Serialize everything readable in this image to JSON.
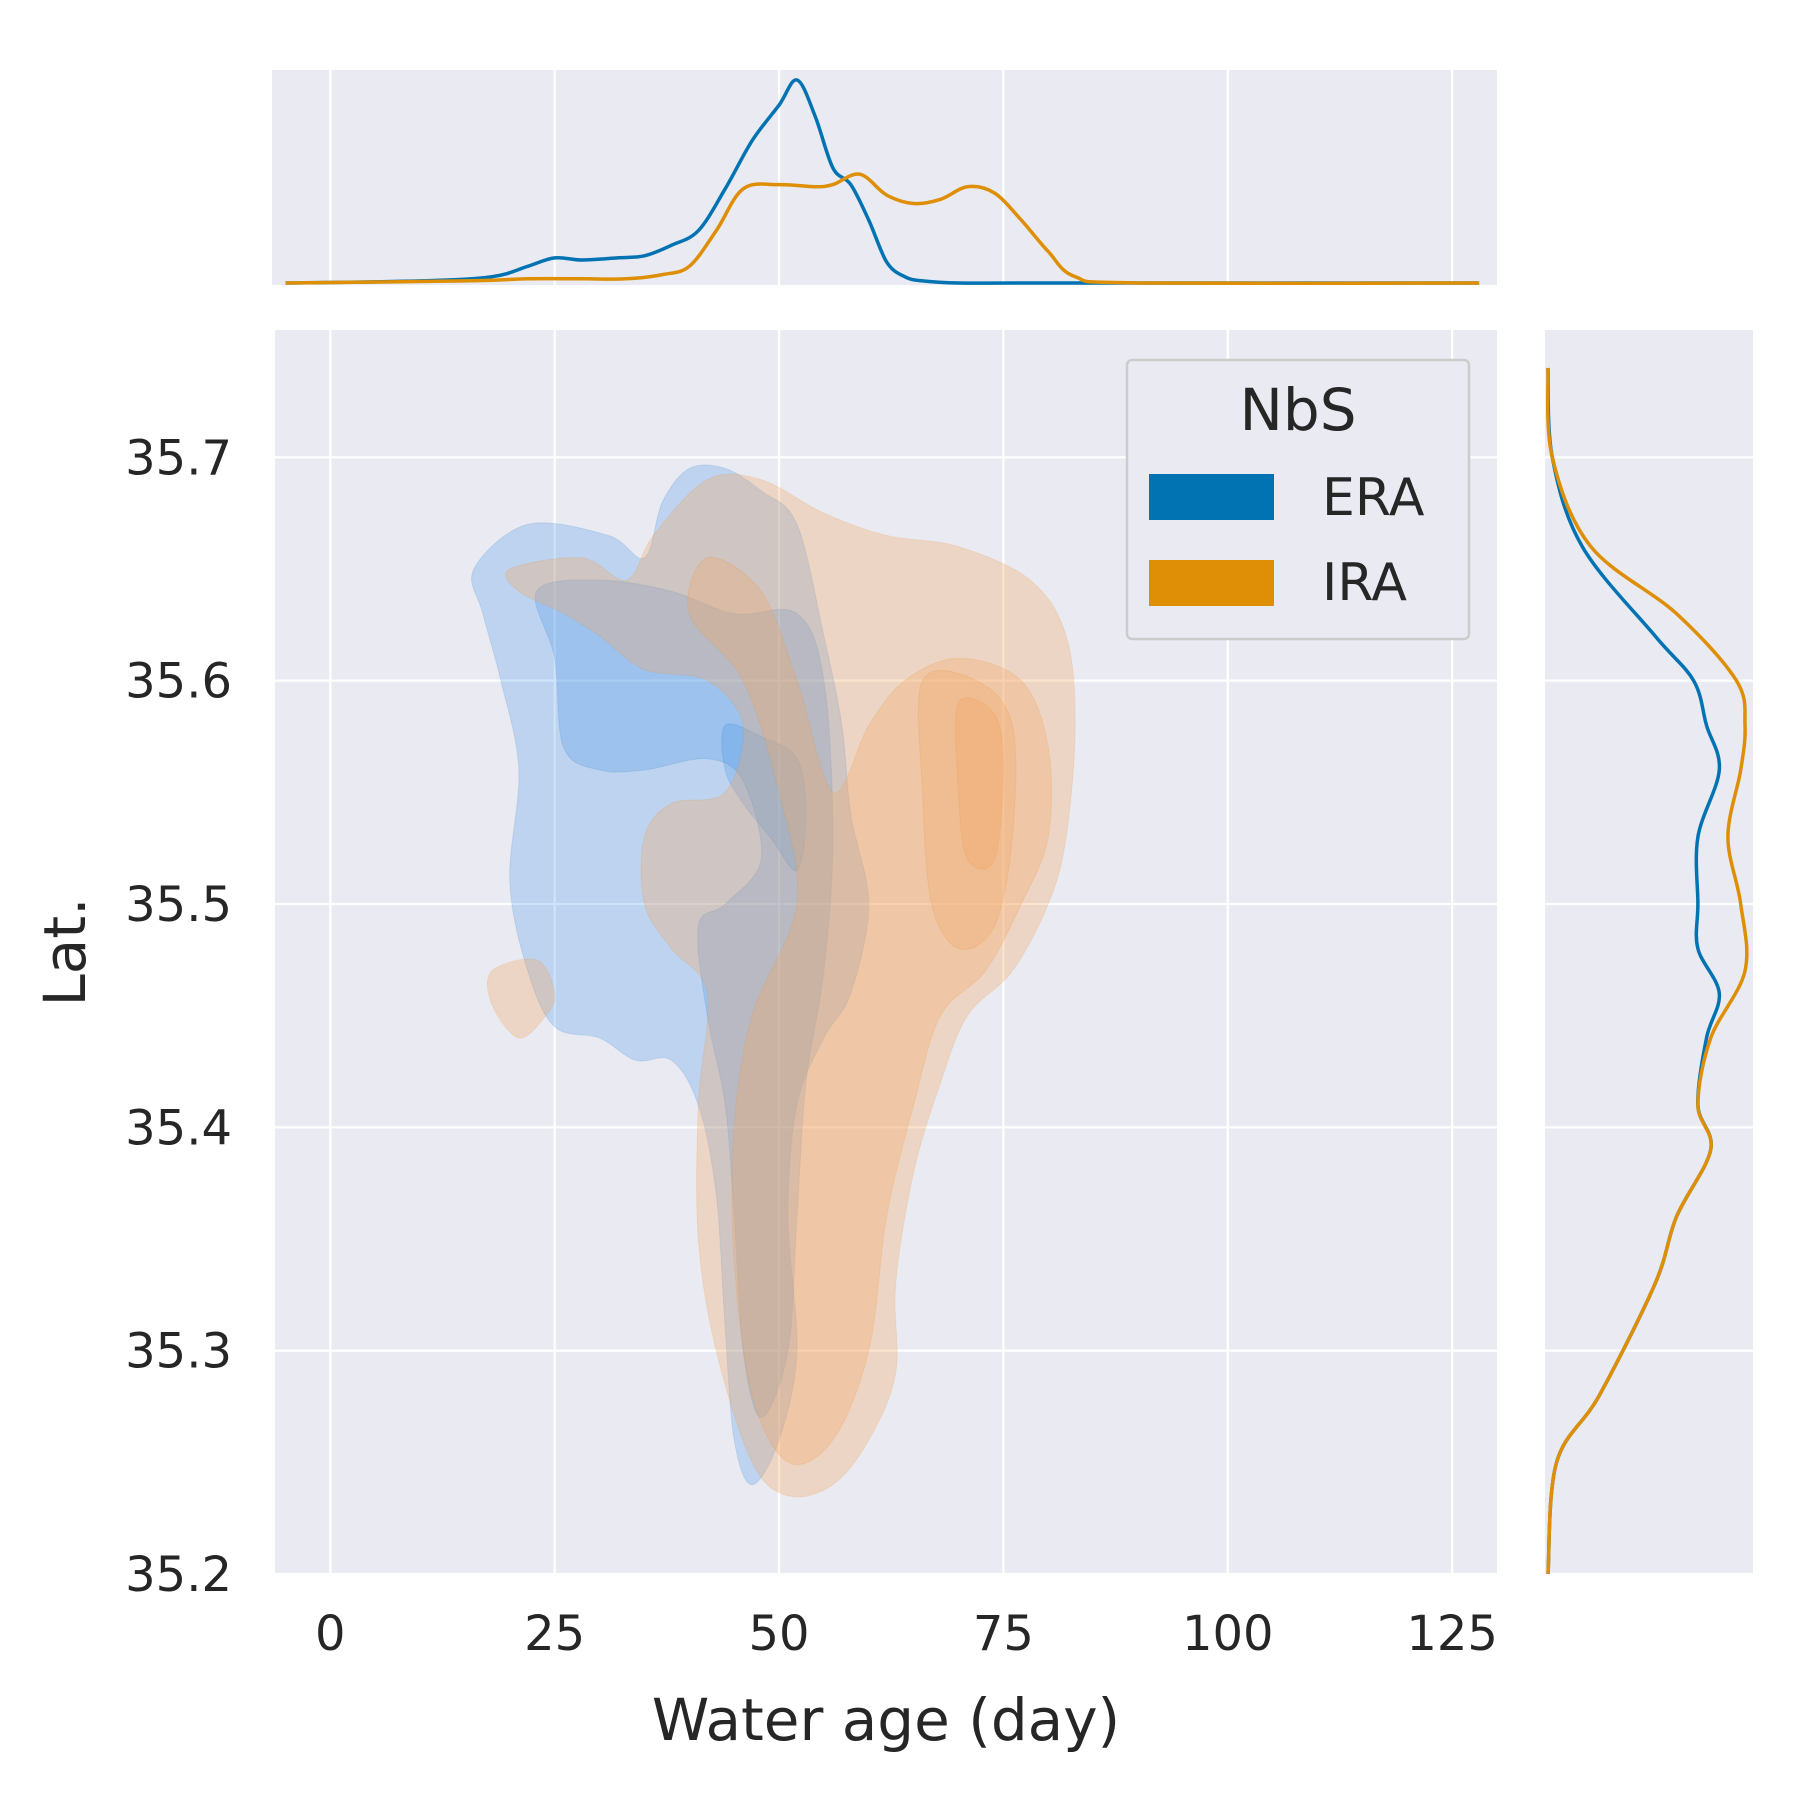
{
  "chart_data": {
    "type": "kde-joint",
    "xlabel": "Water age (day)",
    "ylabel": "Lat.",
    "xlim": [
      -6.5,
      130
    ],
    "ylim": [
      35.2,
      35.757
    ],
    "x_ticks": [
      0,
      25,
      50,
      75,
      100,
      125
    ],
    "y_ticks": [
      35.2,
      35.3,
      35.4,
      35.5,
      35.6,
      35.7
    ],
    "x_tick_labels": [
      "0",
      "25",
      "50",
      "75",
      "100",
      "125"
    ],
    "y_tick_labels": [
      "35.2",
      "35.3",
      "35.4",
      "35.5",
      "35.6",
      "35.7"
    ],
    "grid": true,
    "legend": {
      "title": "NbS",
      "placement": "upper right",
      "entries": [
        {
          "label": "ERA",
          "color": "#0173b2"
        },
        {
          "label": "IRA",
          "color": "#de8f05"
        }
      ]
    },
    "series": [
      {
        "name": "ERA",
        "color": "#0173b2",
        "fill": "#3a8fe8",
        "marginal_x": {
          "x": [
            -5,
            10,
            18,
            22,
            25,
            28,
            32,
            35,
            38,
            41,
            44,
            47,
            50,
            52,
            54,
            56,
            58,
            60,
            62,
            64,
            66,
            70,
            80,
            128
          ],
          "density": [
            0.0,
            0.001,
            0.003,
            0.008,
            0.012,
            0.011,
            0.012,
            0.013,
            0.018,
            0.025,
            0.045,
            0.068,
            0.085,
            0.097,
            0.08,
            0.055,
            0.047,
            0.03,
            0.01,
            0.003,
            0.001,
            0.0,
            0.0,
            0.0
          ]
        },
        "marginal_y": {
          "y": [
            35.2,
            35.25,
            35.28,
            35.33,
            35.36,
            35.39,
            35.41,
            35.44,
            35.46,
            35.48,
            35.5,
            35.53,
            35.56,
            35.58,
            35.6,
            35.62,
            35.66,
            35.7,
            35.74
          ],
          "density": [
            0.0,
            0.002,
            0.012,
            0.025,
            0.03,
            0.038,
            0.035,
            0.037,
            0.04,
            0.035,
            0.035,
            0.035,
            0.04,
            0.037,
            0.034,
            0.025,
            0.008,
            0.001,
            0.0
          ]
        },
        "kde_regions": [
          {
            "level": 1,
            "outline": [
              [
                16,
                35.65
              ],
              [
                22,
                35.67
              ],
              [
                31,
                35.665
              ],
              [
                35,
                35.655
              ],
              [
                37,
                35.68
              ],
              [
                40,
                35.695
              ],
              [
                44,
                35.695
              ],
              [
                48,
                35.685
              ],
              [
                52,
                35.67
              ],
              [
                55,
                35.62
              ],
              [
                57,
                35.58
              ],
              [
                58,
                35.54
              ],
              [
                60,
                35.5
              ],
              [
                58,
                35.46
              ],
              [
                55,
                35.44
              ],
              [
                52,
                35.41
              ],
              [
                51,
                35.36
              ],
              [
                52,
                35.3
              ],
              [
                50,
                35.26
              ],
              [
                47,
                35.24
              ],
              [
                45,
                35.26
              ],
              [
                44,
                35.31
              ],
              [
                43,
                35.37
              ],
              [
                41,
                35.41
              ],
              [
                38,
                35.43
              ],
              [
                34,
                35.43
              ],
              [
                30,
                35.44
              ],
              [
                25,
                35.445
              ],
              [
                22,
                35.47
              ],
              [
                20,
                35.51
              ],
              [
                21,
                35.56
              ],
              [
                19,
                35.6
              ],
              [
                17,
                35.63
              ]
            ]
          },
          {
            "level": 2,
            "outline": [
              [
                23,
                35.64
              ],
              [
                25,
                35.61
              ],
              [
                26,
                35.57
              ],
              [
                30,
                35.56
              ],
              [
                35,
                35.56
              ],
              [
                42,
                35.565
              ],
              [
                46,
                35.555
              ],
              [
                48,
                35.52
              ],
              [
                44,
                35.5
              ],
              [
                41,
                35.49
              ],
              [
                42,
                35.45
              ],
              [
                44,
                35.41
              ],
              [
                45,
                35.36
              ],
              [
                46,
                35.3
              ],
              [
                48,
                35.27
              ],
              [
                51,
                35.3
              ],
              [
                52,
                35.36
              ],
              [
                53,
                35.42
              ],
              [
                55,
                35.47
              ],
              [
                56,
                35.53
              ],
              [
                55,
                35.6
              ],
              [
                52,
                35.63
              ],
              [
                45,
                35.63
              ],
              [
                38,
                35.64
              ],
              [
                30,
                35.645
              ]
            ]
          },
          {
            "level": 3,
            "outline": [
              [
                44,
                35.58
              ],
              [
                48,
                35.575
              ],
              [
                52,
                35.565
              ],
              [
                53,
                35.54
              ],
              [
                52,
                35.515
              ],
              [
                49,
                35.53
              ],
              [
                46,
                35.545
              ],
              [
                44,
                35.56
              ]
            ]
          }
        ]
      },
      {
        "name": "IRA",
        "color": "#de8f05",
        "fill": "#f2a766",
        "marginal_x": {
          "x": [
            -5,
            15,
            22,
            28,
            33,
            37,
            40,
            43,
            46,
            50,
            54,
            56,
            59,
            62,
            65,
            68,
            71,
            74,
            77,
            80,
            83,
            90,
            128
          ],
          "density": [
            0.0,
            0.001,
            0.002,
            0.002,
            0.002,
            0.004,
            0.008,
            0.025,
            0.045,
            0.047,
            0.046,
            0.047,
            0.052,
            0.042,
            0.038,
            0.04,
            0.046,
            0.043,
            0.03,
            0.015,
            0.003,
            0.0,
            0.0
          ]
        },
        "marginal_y": {
          "y": [
            35.2,
            35.25,
            35.28,
            35.33,
            35.36,
            35.39,
            35.41,
            35.44,
            35.47,
            35.5,
            35.53,
            35.56,
            35.58,
            35.6,
            35.63,
            35.66,
            35.7,
            35.74
          ],
          "density": [
            0.0,
            0.002,
            0.012,
            0.025,
            0.03,
            0.038,
            0.035,
            0.038,
            0.046,
            0.045,
            0.042,
            0.045,
            0.046,
            0.044,
            0.03,
            0.01,
            0.001,
            0.0
          ]
        },
        "kde_regions": [
          {
            "level": 1,
            "outline": [
              [
                20,
                35.65
              ],
              [
                28,
                35.655
              ],
              [
                33,
                35.645
              ],
              [
                36,
                35.665
              ],
              [
                42,
                35.69
              ],
              [
                48,
                35.69
              ],
              [
                55,
                35.675
              ],
              [
                62,
                35.665
              ],
              [
                70,
                35.66
              ],
              [
                78,
                35.645
              ],
              [
                82,
                35.62
              ],
              [
                83,
                35.58
              ],
              [
                82,
                35.53
              ],
              [
                80,
                35.5
              ],
              [
                76,
                35.47
              ],
              [
                71,
                35.45
              ],
              [
                68,
                35.42
              ],
              [
                65,
                35.38
              ],
              [
                63,
                35.33
              ],
              [
                63,
                35.29
              ],
              [
                60,
                35.26
              ],
              [
                56,
                35.24
              ],
              [
                51,
                35.235
              ],
              [
                47,
                35.25
              ],
              [
                43,
                35.3
              ],
              [
                41,
                35.35
              ],
              [
                41,
                35.41
              ],
              [
                42,
                35.46
              ],
              [
                38,
                35.48
              ],
              [
                35,
                35.5
              ],
              [
                35,
                35.53
              ],
              [
                38,
                35.545
              ],
              [
                44,
                35.55
              ],
              [
                46,
                35.58
              ],
              [
                42,
                35.6
              ],
              [
                35,
                35.605
              ],
              [
                30,
                35.62
              ],
              [
                26,
                35.63
              ],
              [
                21,
                35.64
              ]
            ]
          },
          {
            "level": 2,
            "outline": [
              [
                40,
                35.63
              ],
              [
                42,
                35.655
              ],
              [
                48,
                35.64
              ],
              [
                52,
                35.6
              ],
              [
                56,
                35.55
              ],
              [
                60,
                35.58
              ],
              [
                64,
                35.6
              ],
              [
                70,
                35.61
              ],
              [
                77,
                35.6
              ],
              [
                80,
                35.57
              ],
              [
                80,
                35.53
              ],
              [
                77,
                35.5
              ],
              [
                73,
                35.47
              ],
              [
                68,
                35.45
              ],
              [
                65,
                35.41
              ],
              [
                62,
                35.36
              ],
              [
                60,
                35.3
              ],
              [
                56,
                35.26
              ],
              [
                51,
                35.25
              ],
              [
                47,
                35.28
              ],
              [
                45,
                35.34
              ],
              [
                45,
                35.4
              ],
              [
                47,
                35.45
              ],
              [
                52,
                35.5
              ],
              [
                50,
                35.55
              ],
              [
                46,
                35.6
              ]
            ]
          },
          {
            "level": 3,
            "outline": [
              [
                66,
                35.6
              ],
              [
                72,
                35.6
              ],
              [
                76,
                35.58
              ],
              [
                76,
                35.53
              ],
              [
                74,
                35.49
              ],
              [
                70,
                35.48
              ],
              [
                67,
                35.5
              ],
              [
                66,
                35.55
              ]
            ]
          },
          {
            "level": 4,
            "outline": [
              [
                70,
                35.59
              ],
              [
                74,
                35.585
              ],
              [
                75,
                35.56
              ],
              [
                74,
                35.52
              ],
              [
                71,
                35.52
              ],
              [
                70,
                35.55
              ]
            ]
          },
          {
            "level": 1,
            "outline": [
              [
                18,
                35.47
              ],
              [
                23,
                35.475
              ],
              [
                25,
                35.46
              ],
              [
                24,
                35.45
              ],
              [
                21,
                35.44
              ],
              [
                18,
                35.455
              ]
            ]
          }
        ]
      }
    ]
  }
}
